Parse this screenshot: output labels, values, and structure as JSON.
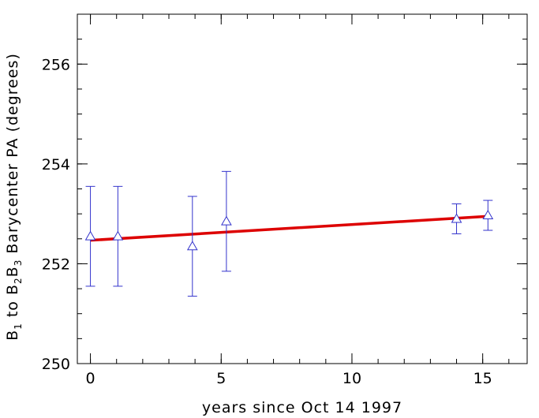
{
  "chart_data": {
    "type": "scatter",
    "xlabel": "years since Oct 14 1997",
    "ylabel_parts": {
      "b1": "B",
      "b1_sub": "1",
      "to": " to B",
      "b2_sub": "2",
      "b3": "B",
      "b3_sub": "3",
      "rest": " Barycenter PA (degrees)"
    },
    "xlim": [
      -0.5,
      16.7
    ],
    "ylim": [
      250,
      257
    ],
    "x_ticks": [
      0,
      5,
      10,
      15
    ],
    "y_ticks": [
      250,
      252,
      254,
      256
    ],
    "x_minor_step": 1,
    "y_minor_step": 0.5,
    "series": [
      {
        "marker": "triangle",
        "color": "#3333cc",
        "points": [
          {
            "x": 0.0,
            "y": 252.55,
            "err": 1.0
          },
          {
            "x": 1.05,
            "y": 252.55,
            "err": 1.0
          },
          {
            "x": 3.9,
            "y": 252.35,
            "err": 1.0
          },
          {
            "x": 5.2,
            "y": 252.85,
            "err": 1.0
          },
          {
            "x": 14.0,
            "y": 252.9,
            "err": 0.3
          },
          {
            "x": 15.2,
            "y": 252.97,
            "err": 0.3
          }
        ]
      }
    ],
    "fit_line": {
      "color": "#dd0000",
      "x": [
        0.0,
        15.2
      ],
      "y": [
        252.47,
        252.95
      ]
    }
  }
}
